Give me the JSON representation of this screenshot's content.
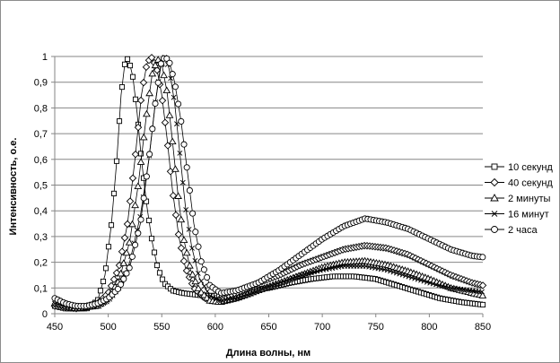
{
  "chart_data": {
    "type": "line",
    "xlabel": "Длина волны, нм",
    "ylabel": "Интенсивность, о.е.",
    "xlim": [
      450,
      850
    ],
    "ylim": [
      0,
      1
    ],
    "x_ticks": [
      "450",
      "500",
      "550",
      "600",
      "650",
      "700",
      "750",
      "800",
      "850"
    ],
    "y_ticks": [
      "0",
      "0,1",
      "0,2",
      "0,3",
      "0,4",
      "0,5",
      "0,6",
      "0,7",
      "0,8",
      "0,9",
      "1"
    ],
    "grid": "horizontal",
    "legend_position": "right",
    "series": [
      {
        "name": "10 секунд",
        "marker": "square",
        "points": [
          [
            450,
            0.03
          ],
          [
            460,
            0.02
          ],
          [
            470,
            0.02
          ],
          [
            480,
            0.02
          ],
          [
            490,
            0.05
          ],
          [
            497,
            0.15
          ],
          [
            503,
            0.35
          ],
          [
            508,
            0.6
          ],
          [
            512,
            0.85
          ],
          [
            516,
            0.99
          ],
          [
            519,
            0.99
          ],
          [
            523,
            0.92
          ],
          [
            527,
            0.78
          ],
          [
            531,
            0.6
          ],
          [
            536,
            0.42
          ],
          [
            541,
            0.28
          ],
          [
            546,
            0.18
          ],
          [
            552,
            0.12
          ],
          [
            560,
            0.09
          ],
          [
            570,
            0.08
          ],
          [
            580,
            0.075
          ],
          [
            590,
            0.07
          ],
          [
            600,
            0.07
          ],
          [
            610,
            0.075
          ],
          [
            620,
            0.08
          ],
          [
            630,
            0.09
          ],
          [
            650,
            0.1
          ],
          [
            670,
            0.12
          ],
          [
            690,
            0.135
          ],
          [
            710,
            0.145
          ],
          [
            730,
            0.145
          ],
          [
            750,
            0.135
          ],
          [
            770,
            0.11
          ],
          [
            790,
            0.085
          ],
          [
            810,
            0.06
          ],
          [
            830,
            0.045
          ],
          [
            850,
            0.035
          ]
        ]
      },
      {
        "name": "40 секунд",
        "marker": "diamond",
        "points": [
          [
            450,
            0.03
          ],
          [
            470,
            0.02
          ],
          [
            490,
            0.04
          ],
          [
            500,
            0.08
          ],
          [
            510,
            0.18
          ],
          [
            518,
            0.35
          ],
          [
            525,
            0.6
          ],
          [
            531,
            0.85
          ],
          [
            536,
            0.97
          ],
          [
            540,
            1.0
          ],
          [
            545,
            0.96
          ],
          [
            550,
            0.85
          ],
          [
            555,
            0.68
          ],
          [
            560,
            0.48
          ],
          [
            566,
            0.3
          ],
          [
            572,
            0.18
          ],
          [
            580,
            0.1
          ],
          [
            590,
            0.06
          ],
          [
            600,
            0.05
          ],
          [
            610,
            0.06
          ],
          [
            625,
            0.09
          ],
          [
            640,
            0.12
          ],
          [
            660,
            0.15
          ],
          [
            680,
            0.19
          ],
          [
            700,
            0.22
          ],
          [
            720,
            0.25
          ],
          [
            740,
            0.265
          ],
          [
            760,
            0.255
          ],
          [
            780,
            0.23
          ],
          [
            800,
            0.19
          ],
          [
            820,
            0.15
          ],
          [
            840,
            0.12
          ],
          [
            850,
            0.11
          ]
        ]
      },
      {
        "name": "2 минуты",
        "marker": "triangle",
        "points": [
          [
            450,
            0.04
          ],
          [
            470,
            0.02
          ],
          [
            490,
            0.03
          ],
          [
            500,
            0.06
          ],
          [
            510,
            0.13
          ],
          [
            520,
            0.28
          ],
          [
            528,
            0.5
          ],
          [
            535,
            0.75
          ],
          [
            541,
            0.93
          ],
          [
            546,
            0.99
          ],
          [
            550,
            0.97
          ],
          [
            555,
            0.86
          ],
          [
            560,
            0.67
          ],
          [
            565,
            0.47
          ],
          [
            570,
            0.3
          ],
          [
            577,
            0.17
          ],
          [
            585,
            0.09
          ],
          [
            595,
            0.05
          ],
          [
            605,
            0.045
          ],
          [
            620,
            0.06
          ],
          [
            640,
            0.09
          ],
          [
            660,
            0.12
          ],
          [
            680,
            0.15
          ],
          [
            700,
            0.18
          ],
          [
            720,
            0.2
          ],
          [
            740,
            0.205
          ],
          [
            760,
            0.19
          ],
          [
            780,
            0.165
          ],
          [
            800,
            0.135
          ],
          [
            820,
            0.1
          ],
          [
            840,
            0.08
          ],
          [
            850,
            0.07
          ]
        ]
      },
      {
        "name": "16 минут",
        "marker": "cross",
        "points": [
          [
            450,
            0.04
          ],
          [
            470,
            0.02
          ],
          [
            490,
            0.03
          ],
          [
            500,
            0.05
          ],
          [
            510,
            0.1
          ],
          [
            520,
            0.2
          ],
          [
            530,
            0.38
          ],
          [
            538,
            0.6
          ],
          [
            544,
            0.82
          ],
          [
            549,
            0.96
          ],
          [
            553,
            1.0
          ],
          [
            557,
            0.95
          ],
          [
            562,
            0.82
          ],
          [
            567,
            0.62
          ],
          [
            572,
            0.42
          ],
          [
            578,
            0.26
          ],
          [
            585,
            0.14
          ],
          [
            595,
            0.07
          ],
          [
            605,
            0.05
          ],
          [
            620,
            0.06
          ],
          [
            640,
            0.09
          ],
          [
            660,
            0.12
          ],
          [
            680,
            0.15
          ],
          [
            700,
            0.17
          ],
          [
            720,
            0.185
          ],
          [
            740,
            0.185
          ],
          [
            760,
            0.17
          ],
          [
            780,
            0.145
          ],
          [
            800,
            0.12
          ],
          [
            820,
            0.1
          ],
          [
            840,
            0.09
          ],
          [
            850,
            0.085
          ]
        ]
      },
      {
        "name": "2 часа",
        "marker": "circle",
        "points": [
          [
            450,
            0.06
          ],
          [
            460,
            0.04
          ],
          [
            470,
            0.03
          ],
          [
            480,
            0.03
          ],
          [
            490,
            0.04
          ],
          [
            500,
            0.06
          ],
          [
            510,
            0.1
          ],
          [
            520,
            0.18
          ],
          [
            530,
            0.35
          ],
          [
            538,
            0.6
          ],
          [
            544,
            0.82
          ],
          [
            549,
            0.97
          ],
          [
            553,
            1.0
          ],
          [
            557,
            0.98
          ],
          [
            562,
            0.9
          ],
          [
            568,
            0.75
          ],
          [
            574,
            0.55
          ],
          [
            580,
            0.35
          ],
          [
            587,
            0.2
          ],
          [
            595,
            0.11
          ],
          [
            605,
            0.08
          ],
          [
            620,
            0.09
          ],
          [
            640,
            0.12
          ],
          [
            660,
            0.17
          ],
          [
            680,
            0.23
          ],
          [
            700,
            0.29
          ],
          [
            720,
            0.34
          ],
          [
            740,
            0.37
          ],
          [
            760,
            0.355
          ],
          [
            780,
            0.33
          ],
          [
            800,
            0.29
          ],
          [
            820,
            0.25
          ],
          [
            840,
            0.225
          ],
          [
            850,
            0.22
          ]
        ]
      }
    ]
  }
}
